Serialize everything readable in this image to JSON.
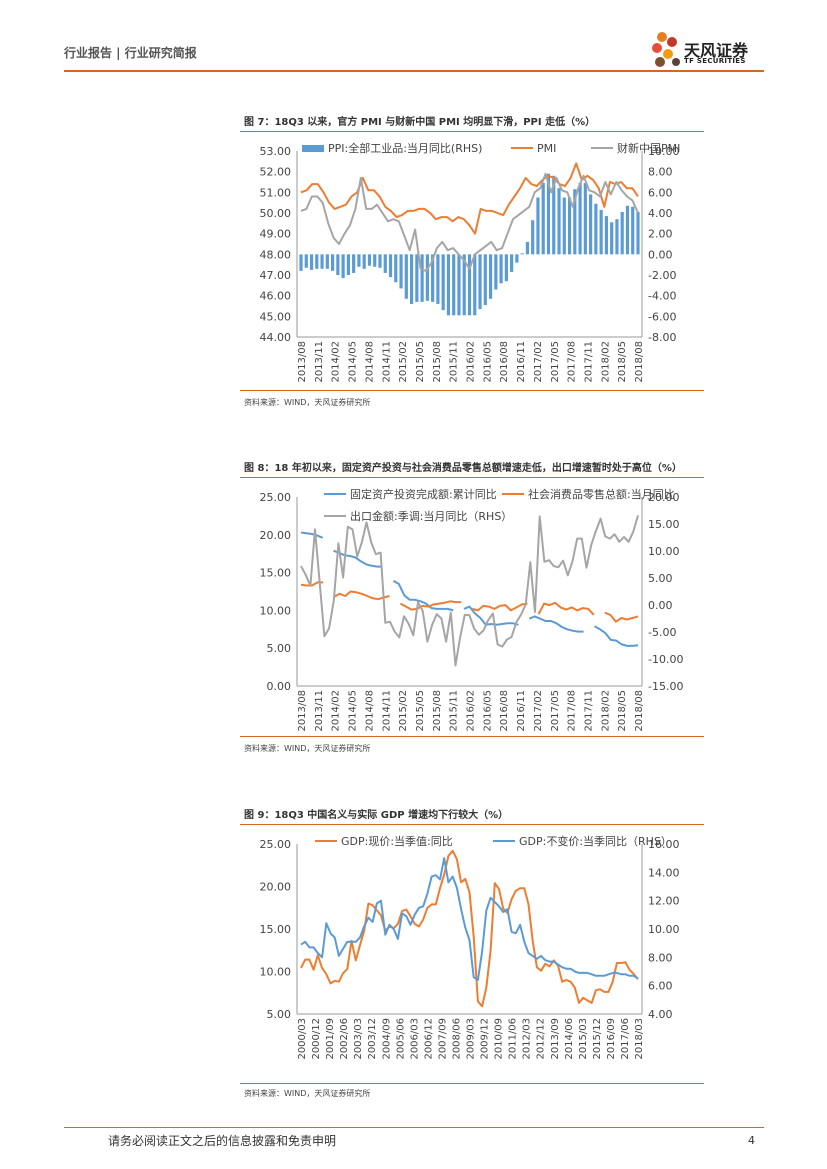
{
  "header": {
    "title": "行业报告 | 行业研究简报"
  },
  "logo": {
    "name": "天风证券",
    "sub": "TF SECURITIES"
  },
  "footer": {
    "disclaimer": "请务必阅读正文之后的信息披露和免责申明",
    "page": "4"
  },
  "figures": [
    {
      "title": "图 7：18Q3 以来，官方 PMI 与财新中国 PMI 均明显下滑，PPI 走低（%）",
      "source": "资料来源：WIND，天风证券研究所"
    },
    {
      "title": "图 8：18 年初以来，固定资产投资与社会消费品零售总额增速走低，出口增速暂时处于高位（%）",
      "source": "资料来源：WIND，天风证券研究所"
    },
    {
      "title": "图 9：18Q3 中国名义与实际 GDP 增速均下行较大（%）",
      "source": "资料来源：WIND，天风证券研究所"
    }
  ],
  "colors": {
    "blue": "#5b9bd5",
    "orange": "#ed7d31",
    "gray": "#a5a5a5",
    "accent": "#d2691e"
  },
  "chart_data": [
    {
      "type": "bar+line",
      "title": "图 7：18Q3 以来，官方 PMI 与财新中国 PMI 均明显下滑，PPI 走低（%）",
      "x_ticks": [
        "2013/08",
        "2013/11",
        "2014/02",
        "2014/05",
        "2014/08",
        "2014/11",
        "2015/02",
        "2015/05",
        "2015/08",
        "2015/11",
        "2016/02",
        "2016/05",
        "2016/08",
        "2016/11",
        "2017/02",
        "2017/05",
        "2017/08",
        "2017/11",
        "2018/02",
        "2018/05",
        "2018/08"
      ],
      "left_axis": {
        "ticks": [
          "53.00",
          "52.00",
          "51.00",
          "50.00",
          "49.00",
          "48.00",
          "47.00",
          "46.00",
          "45.00",
          "44.00"
        ],
        "ylim": [
          44,
          53
        ]
      },
      "right_axis": {
        "ticks": [
          "10.00",
          "8.00",
          "6.00",
          "4.00",
          "2.00",
          "0.00",
          "-2.00",
          "-4.00",
          "-6.00",
          "-8.00"
        ],
        "ylim": [
          -8,
          10
        ]
      },
      "series": [
        {
          "name": "PPI:全部工业品:当月同比(RHS)",
          "kind": "bar",
          "axis": "right",
          "values": [
            -1.6,
            -1.3,
            -1.5,
            -1.4,
            -1.4,
            -1.4,
            -1.6,
            -2.0,
            -2.3,
            -2.0,
            -1.8,
            -1.2,
            -1.4,
            -1.1,
            -1.2,
            -1.3,
            -1.8,
            -2.2,
            -2.7,
            -3.3,
            -4.3,
            -4.8,
            -4.6,
            -4.6,
            -4.5,
            -4.6,
            -4.8,
            -5.4,
            -5.9,
            -5.9,
            -5.9,
            -5.9,
            -5.9,
            -5.9,
            -5.3,
            -4.9,
            -4.3,
            -3.4,
            -2.8,
            -2.6,
            -1.7,
            -0.8,
            0.1,
            1.2,
            3.3,
            5.5,
            6.9,
            7.8,
            7.6,
            6.4,
            5.5,
            5.5,
            6.3,
            6.9,
            6.9,
            5.8,
            4.9,
            4.3,
            3.7,
            3.1,
            3.4,
            4.1,
            4.7,
            4.6,
            4.1
          ]
        },
        {
          "name": "PMI",
          "kind": "line",
          "axis": "left",
          "values": [
            51.0,
            51.1,
            51.4,
            51.4,
            51.0,
            50.5,
            50.2,
            50.3,
            50.4,
            50.8,
            51.0,
            51.7,
            51.1,
            51.1,
            50.8,
            50.3,
            50.1,
            49.8,
            49.9,
            50.1,
            50.1,
            50.2,
            50.2,
            50.0,
            49.7,
            49.8,
            49.8,
            49.6,
            49.8,
            49.7,
            49.4,
            49.0,
            50.2,
            50.1,
            50.1,
            50.0,
            49.9,
            50.4,
            50.8,
            51.2,
            51.7,
            51.4,
            51.3,
            51.6,
            51.8,
            51.7,
            51.4,
            51.3,
            51.7,
            52.4,
            51.6,
            51.8,
            51.6,
            51.2,
            50.3,
            51.5,
            51.4,
            51.5,
            51.2,
            51.2,
            50.8
          ]
        },
        {
          "name": "财新中国PMI",
          "kind": "line",
          "axis": "left",
          "values": [
            50.1,
            50.2,
            50.8,
            50.8,
            50.5,
            49.5,
            48.8,
            48.5,
            49.0,
            49.4,
            50.2,
            51.7,
            50.2,
            50.2,
            50.4,
            50.0,
            49.6,
            49.7,
            49.6,
            48.9,
            48.2,
            49.2,
            47.3,
            47.2,
            47.6,
            48.3,
            48.6,
            48.2,
            48.3,
            48.0,
            47.7,
            47.3,
            48.0,
            48.2,
            48.4,
            48.6,
            48.2,
            48.3,
            49.0,
            49.7,
            49.9,
            50.1,
            50.3,
            51.0,
            51.2,
            51.9,
            51.0,
            51.7,
            51.1,
            51.0,
            50.3,
            51.2,
            51.8,
            51.1,
            51.0,
            50.8,
            51.5,
            50.9,
            51.5,
            51.1,
            50.8,
            50.6,
            50.0
          ]
        }
      ]
    },
    {
      "type": "line",
      "title": "图 8：18 年初以来，固定资产投资与社会消费品零售总额增速走低，出口增速暂时处于高位（%）",
      "x_ticks": [
        "2013/08",
        "2013/11",
        "2014/02",
        "2014/05",
        "2014/08",
        "2014/11",
        "2015/02",
        "2015/05",
        "2015/08",
        "2015/11",
        "2016/02",
        "2016/05",
        "2016/08",
        "2016/11",
        "2017/02",
        "2017/05",
        "2017/08",
        "2017/11",
        "2018/02",
        "2018/05",
        "2018/08"
      ],
      "left_axis": {
        "ticks": [
          "25.00",
          "20.00",
          "15.00",
          "10.00",
          "5.00",
          "0.00"
        ],
        "ylim": [
          0,
          25
        ]
      },
      "right_axis": {
        "ticks": [
          "20.00",
          "15.00",
          "10.00",
          "5.00",
          "0.00",
          "-5.00",
          "-10.00",
          "-15.00"
        ],
        "ylim": [
          -15,
          20
        ]
      },
      "series": [
        {
          "name": "固定资产投资完成额:累计同比",
          "axis": "left",
          "values": [
            20.3,
            20.2,
            20.1,
            19.9,
            19.6,
            null,
            17.9,
            17.6,
            17.3,
            17.2,
            17.0,
            16.5,
            16.1,
            15.9,
            15.8,
            15.8,
            null,
            13.9,
            13.5,
            12.0,
            11.4,
            11.4,
            11.2,
            10.9,
            10.3,
            10.2,
            10.2,
            10.2,
            10.0,
            null,
            10.2,
            10.5,
            9.6,
            9.0,
            8.1,
            8.2,
            8.1,
            8.2,
            8.3,
            8.3,
            8.1,
            null,
            8.9,
            9.2,
            8.9,
            8.6,
            8.6,
            8.3,
            7.8,
            7.5,
            7.3,
            7.2,
            7.2,
            null,
            7.9,
            7.5,
            7.0,
            6.1,
            6.0,
            5.5,
            5.3,
            5.3,
            5.4
          ]
        },
        {
          "name": "社会消费品零售总额:当月同比",
          "axis": "left",
          "values": [
            13.4,
            13.3,
            13.3,
            13.7,
            13.7,
            null,
            11.8,
            12.2,
            11.9,
            12.5,
            12.4,
            12.2,
            11.9,
            11.6,
            11.5,
            11.7,
            11.9,
            null,
            10.9,
            10.5,
            10.1,
            10.2,
            10.6,
            10.5,
            10.8,
            10.9,
            11.0,
            11.2,
            11.1,
            11.1,
            null,
            10.2,
            10.0,
            10.6,
            10.5,
            10.2,
            10.6,
            10.7,
            10.0,
            10.4,
            10.8,
            10.9,
            null,
            9.5,
            10.9,
            10.7,
            11.0,
            10.4,
            10.1,
            10.4,
            10.0,
            10.3,
            10.2,
            9.4,
            null,
            9.7,
            9.4,
            8.5,
            9.0,
            8.8,
            9.0,
            9.2
          ]
        },
        {
          "name": "出口金额:季调:当月同比（RHS）",
          "axis": "right",
          "values": [
            7.2,
            5.6,
            3.6,
            14.0,
            4.1,
            -5.8,
            -4.3,
            0.8,
            11.4,
            5.1,
            14.5,
            14.0,
            9.0,
            11.6,
            15.3,
            11.6,
            9.4,
            9.7,
            -3.3,
            -3.1,
            -4.9,
            -6.0,
            -2.1,
            -3.5,
            -5.6,
            0.5,
            -1.1,
            -6.8,
            -3.7,
            -1.7,
            -2.5,
            -6.8,
            -1.4,
            -11.2,
            -6.0,
            -1.8,
            -1.9,
            -4.4,
            -5.5,
            -4.7,
            -2.8,
            -1.6,
            -7.3,
            -7.7,
            -6.4,
            -5.9,
            -3.2,
            -1.8,
            0.1,
            7.9,
            -1.3,
            16.4,
            8.0,
            8.3,
            7.2,
            7.0,
            8.2,
            5.5,
            8.1,
            12.3,
            12.3,
            6.9,
            11.1,
            13.7,
            16.0,
            12.7,
            12.3,
            13.1,
            11.7,
            12.6,
            11.7,
            13.6,
            16.6
          ]
        }
      ]
    },
    {
      "type": "line",
      "title": "图 9：18Q3 中国名义与实际 GDP 增速均下行较大（%）",
      "x_ticks": [
        "2000/03",
        "2000/12",
        "2001/09",
        "2002/06",
        "2003/03",
        "2003/12",
        "2004/09",
        "2005/06",
        "2006/03",
        "2006/12",
        "2007/09",
        "2008/06",
        "2009/03",
        "2009/12",
        "2010/09",
        "2011/06",
        "2012/03",
        "2012/12",
        "2013/09",
        "2014/06",
        "2015/03",
        "2015/12",
        "2016/09",
        "2017/06",
        "2018/03"
      ],
      "left_axis": {
        "ticks": [
          "25.00",
          "20.00",
          "15.00",
          "10.00",
          "5.00"
        ],
        "ylim": [
          5,
          25
        ]
      },
      "right_axis": {
        "ticks": [
          "16.00",
          "14.00",
          "12.00",
          "10.00",
          "8.00",
          "6.00",
          "4.00"
        ],
        "ylim": [
          4,
          16
        ]
      },
      "series": [
        {
          "name": "GDP:现价:当季值:同比",
          "axis": "left",
          "values": [
            10.4,
            11.4,
            11.4,
            10.2,
            11.9,
            10.4,
            9.7,
            8.6,
            8.9,
            8.8,
            9.8,
            10.3,
            13.6,
            11.3,
            13.1,
            14.8,
            18.0,
            17.8,
            17.2,
            16.6,
            14.8,
            15.3,
            15.1,
            15.6,
            17.1,
            17.3,
            16.5,
            15.6,
            15.3,
            16.1,
            17.5,
            17.9,
            17.9,
            19.8,
            21.4,
            23.6,
            24.2,
            23.2,
            20.5,
            20.9,
            19.3,
            14.1,
            6.5,
            5.9,
            8.1,
            12.5,
            20.4,
            19.7,
            17.4,
            16.9,
            18.5,
            19.5,
            19.8,
            19.8,
            17.9,
            13.6,
            10.5,
            10.1,
            10.9,
            10.6,
            11.3,
            10.7,
            8.8,
            9.0,
            8.8,
            8.1,
            6.3,
            6.9,
            6.6,
            6.3,
            7.8,
            7.9,
            7.6,
            7.6,
            8.8,
            11.0,
            11.0,
            11.1,
            10.2,
            9.7,
            9.1
          ]
        },
        {
          "name": "GDP:不变价:当季同比（RHS）",
          "axis": "right",
          "values": [
            8.9,
            9.1,
            8.7,
            8.7,
            8.3,
            8.0,
            10.4,
            9.7,
            9.4,
            8.1,
            8.6,
            9.1,
            9.1,
            9.1,
            9.4,
            10.2,
            10.8,
            10.5,
            11.8,
            12.0,
            9.6,
            10.3,
            10.0,
            9.3,
            11.1,
            10.9,
            10.3,
            11.0,
            11.5,
            11.6,
            12.5,
            13.7,
            13.8,
            13.5,
            15.0,
            13.3,
            13.7,
            12.9,
            11.4,
            10.1,
            9.2,
            6.6,
            6.4,
            8.4,
            11.3,
            12.2,
            11.9,
            11.6,
            11.2,
            11.4,
            9.8,
            9.7,
            10.3,
            9.1,
            8.3,
            8.1,
            7.9,
            8.1,
            7.8,
            7.7,
            7.7,
            7.5,
            7.3,
            7.2,
            7.2,
            7.0,
            6.9,
            6.9,
            6.9,
            6.8,
            6.7,
            6.7,
            6.7,
            6.8,
            6.9,
            6.9,
            6.8,
            6.8,
            6.7,
            6.7,
            6.5
          ]
        }
      ]
    }
  ]
}
